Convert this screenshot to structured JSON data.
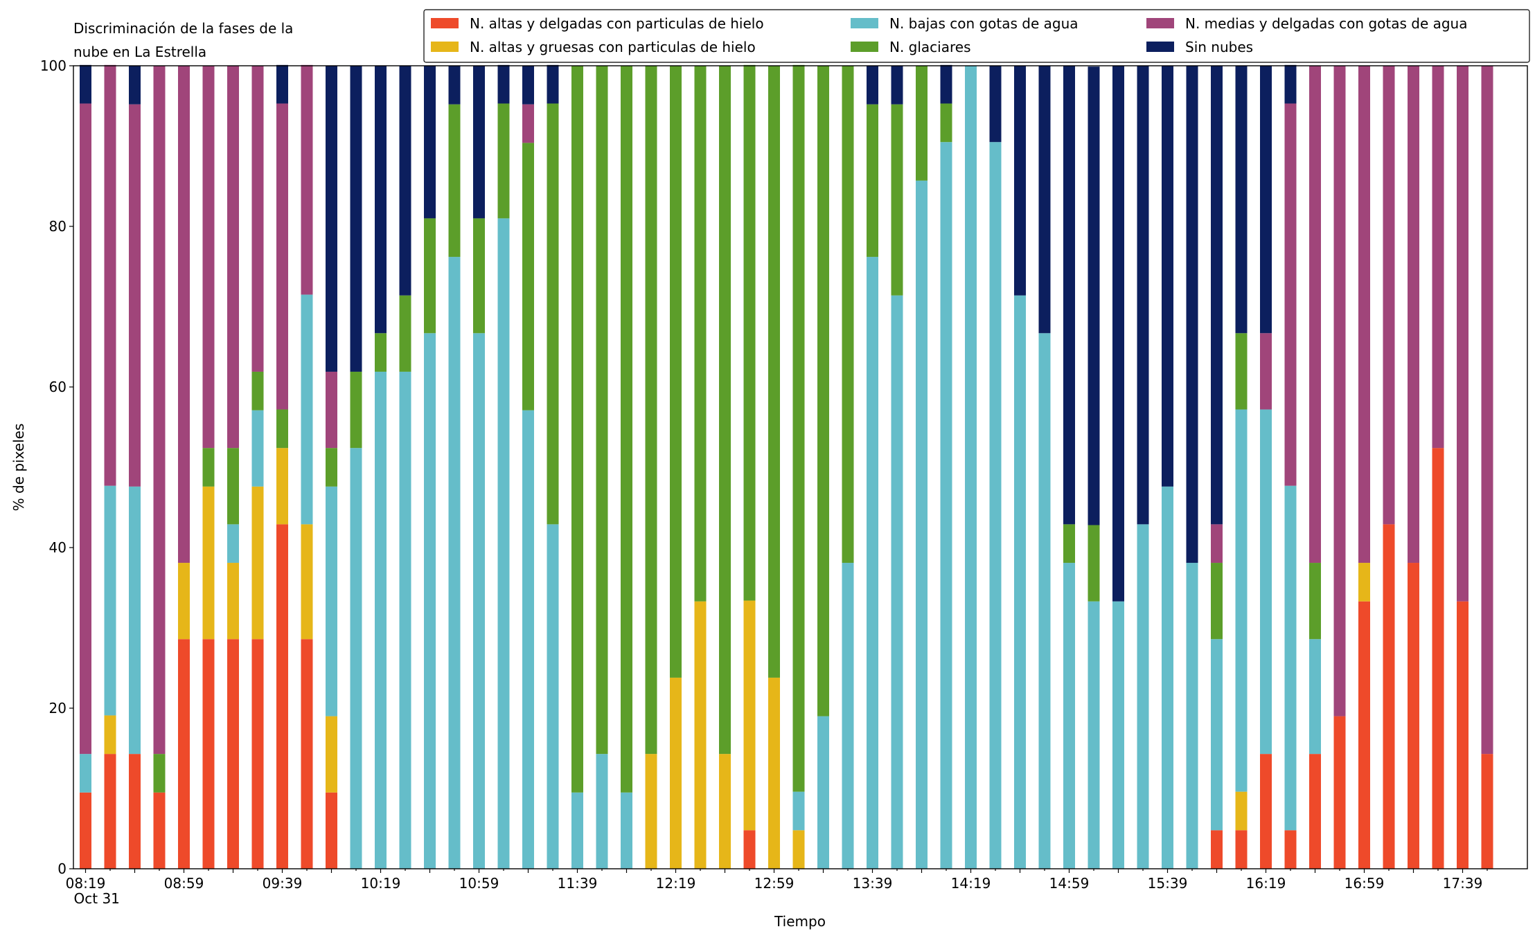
{
  "chart_data": {
    "type": "stacked_bar",
    "title": [
      "Discriminación de la fases de la",
      "nube en La Estrella"
    ],
    "x_label": "Tiempo",
    "y_label": "% de pixeles",
    "categories": [
      "08:19",
      null,
      null,
      null,
      "08:59",
      null,
      null,
      null,
      "09:39",
      null,
      null,
      null,
      "10:19",
      null,
      null,
      null,
      "10:59",
      null,
      null,
      null,
      "11:39",
      null,
      null,
      null,
      "12:19",
      null,
      null,
      null,
      "12:59",
      null,
      null,
      null,
      "13:39",
      null,
      null,
      null,
      "14:19",
      null,
      null,
      null,
      "14:59",
      null,
      null,
      null,
      "15:39",
      null,
      null,
      null,
      "16:19",
      null,
      null,
      null,
      "16:59",
      null,
      null,
      null,
      "17:39",
      null
    ],
    "date_label": "Oct 31",
    "ylim": [
      0,
      100
    ],
    "yticks": [
      0,
      20,
      40,
      60,
      80,
      100
    ],
    "series": [
      {
        "name": "N. altas y delgadas con particulas de hielo",
        "color": "#ee4a2a",
        "values": [
          9.5,
          14.3,
          14.3,
          9.5,
          28.6,
          28.6,
          28.6,
          28.6,
          42.9,
          28.6,
          9.5,
          0,
          0,
          0,
          0,
          0,
          0,
          0,
          0,
          0,
          0,
          0,
          0,
          0,
          0,
          0,
          0,
          4.8,
          0,
          0,
          0,
          0,
          0,
          0,
          0,
          0,
          0,
          0,
          0,
          0,
          0,
          0,
          0,
          0,
          0,
          0,
          4.8,
          4.8,
          14.3,
          4.8,
          14.3,
          19,
          33.3,
          42.9,
          38.1,
          52.4,
          33.3,
          14.3
        ]
      },
      {
        "name": "N. altas y gruesas con particulas de hielo",
        "color": "#e6b619",
        "values": [
          0,
          4.8,
          0,
          0,
          9.5,
          19,
          9.5,
          19,
          9.5,
          14.3,
          9.5,
          0,
          0,
          0,
          0,
          0,
          0,
          0,
          0,
          0,
          0,
          0,
          0,
          14.3,
          23.8,
          33.3,
          14.3,
          28.6,
          23.8,
          4.8,
          0,
          0,
          0,
          0,
          0,
          0,
          0,
          0,
          0,
          0,
          0,
          0,
          0,
          0,
          0,
          0,
          0,
          4.8,
          0,
          0,
          0,
          0,
          4.8,
          0,
          0,
          0,
          0,
          0
        ]
      },
      {
        "name": "N. bajas con gotas de agua",
        "color": "#65bdc9",
        "values": [
          4.8,
          28.6,
          33.3,
          0,
          0,
          0,
          4.8,
          9.5,
          0,
          28.6,
          28.6,
          52.4,
          61.9,
          61.9,
          66.7,
          76.2,
          66.7,
          81,
          57.1,
          42.9,
          9.5,
          14.3,
          9.5,
          0,
          0,
          0,
          0,
          0,
          0,
          4.8,
          19,
          38.1,
          76.2,
          71.4,
          85.7,
          90.5,
          100,
          90.5,
          71.4,
          66.7,
          38.1,
          33.3,
          33.3,
          42.9,
          47.6,
          38.1,
          23.8,
          47.6,
          42.9,
          42.9,
          14.3,
          0,
          0,
          0,
          0,
          0,
          0,
          0
        ]
      },
      {
        "name": "N. glaciares",
        "color": "#5c9e2a",
        "values": [
          0,
          0,
          0,
          4.8,
          0,
          4.8,
          9.5,
          4.8,
          4.8,
          0,
          4.8,
          9.5,
          4.8,
          9.5,
          14.3,
          19,
          14.3,
          14.3,
          33.3,
          52.4,
          90.5,
          85.7,
          90.5,
          85.7,
          76.2,
          66.7,
          85.7,
          66.7,
          76.2,
          90.5,
          81,
          61.9,
          19,
          23.8,
          14.3,
          4.8,
          0,
          0,
          0,
          0,
          4.8,
          9.5,
          0,
          0,
          0,
          0,
          9.5,
          9.5,
          0,
          0,
          9.5,
          0,
          0,
          0,
          0,
          0,
          0,
          0
        ]
      },
      {
        "name": "N. medias y delgadas con gotas de agua",
        "color": "#a0457a",
        "values": [
          81,
          52.4,
          47.6,
          85.7,
          61.9,
          47.6,
          47.6,
          38.1,
          38.1,
          28.6,
          9.5,
          0,
          0,
          0,
          0,
          0,
          0,
          0,
          4.8,
          0,
          0,
          0,
          0,
          0,
          0,
          0,
          0,
          0,
          0,
          0,
          0,
          0,
          0,
          0,
          0,
          0,
          0,
          0,
          0,
          0,
          0,
          0,
          0,
          0,
          0,
          0,
          4.8,
          0,
          9.5,
          47.6,
          61.9,
          81,
          61.9,
          57.1,
          61.9,
          47.6,
          66.7,
          85.7
        ]
      },
      {
        "name": "Sin nubes",
        "color": "#0c1f5e",
        "values": [
          4.8,
          0,
          4.8,
          0,
          0,
          0,
          0,
          0,
          4.8,
          0,
          38.1,
          38.1,
          33.3,
          28.6,
          19,
          4.8,
          19,
          4.8,
          4.8,
          4.8,
          0,
          0,
          0,
          0,
          0,
          0,
          0,
          0,
          0,
          0,
          0,
          0,
          4.8,
          4.8,
          0,
          4.8,
          0,
          9.5,
          28.6,
          33.3,
          57.1,
          57.1,
          66.7,
          57.1,
          52.4,
          61.9,
          57.1,
          33.3,
          33.3,
          4.8,
          0,
          0,
          0,
          0,
          0,
          0,
          0,
          0
        ]
      }
    ]
  }
}
